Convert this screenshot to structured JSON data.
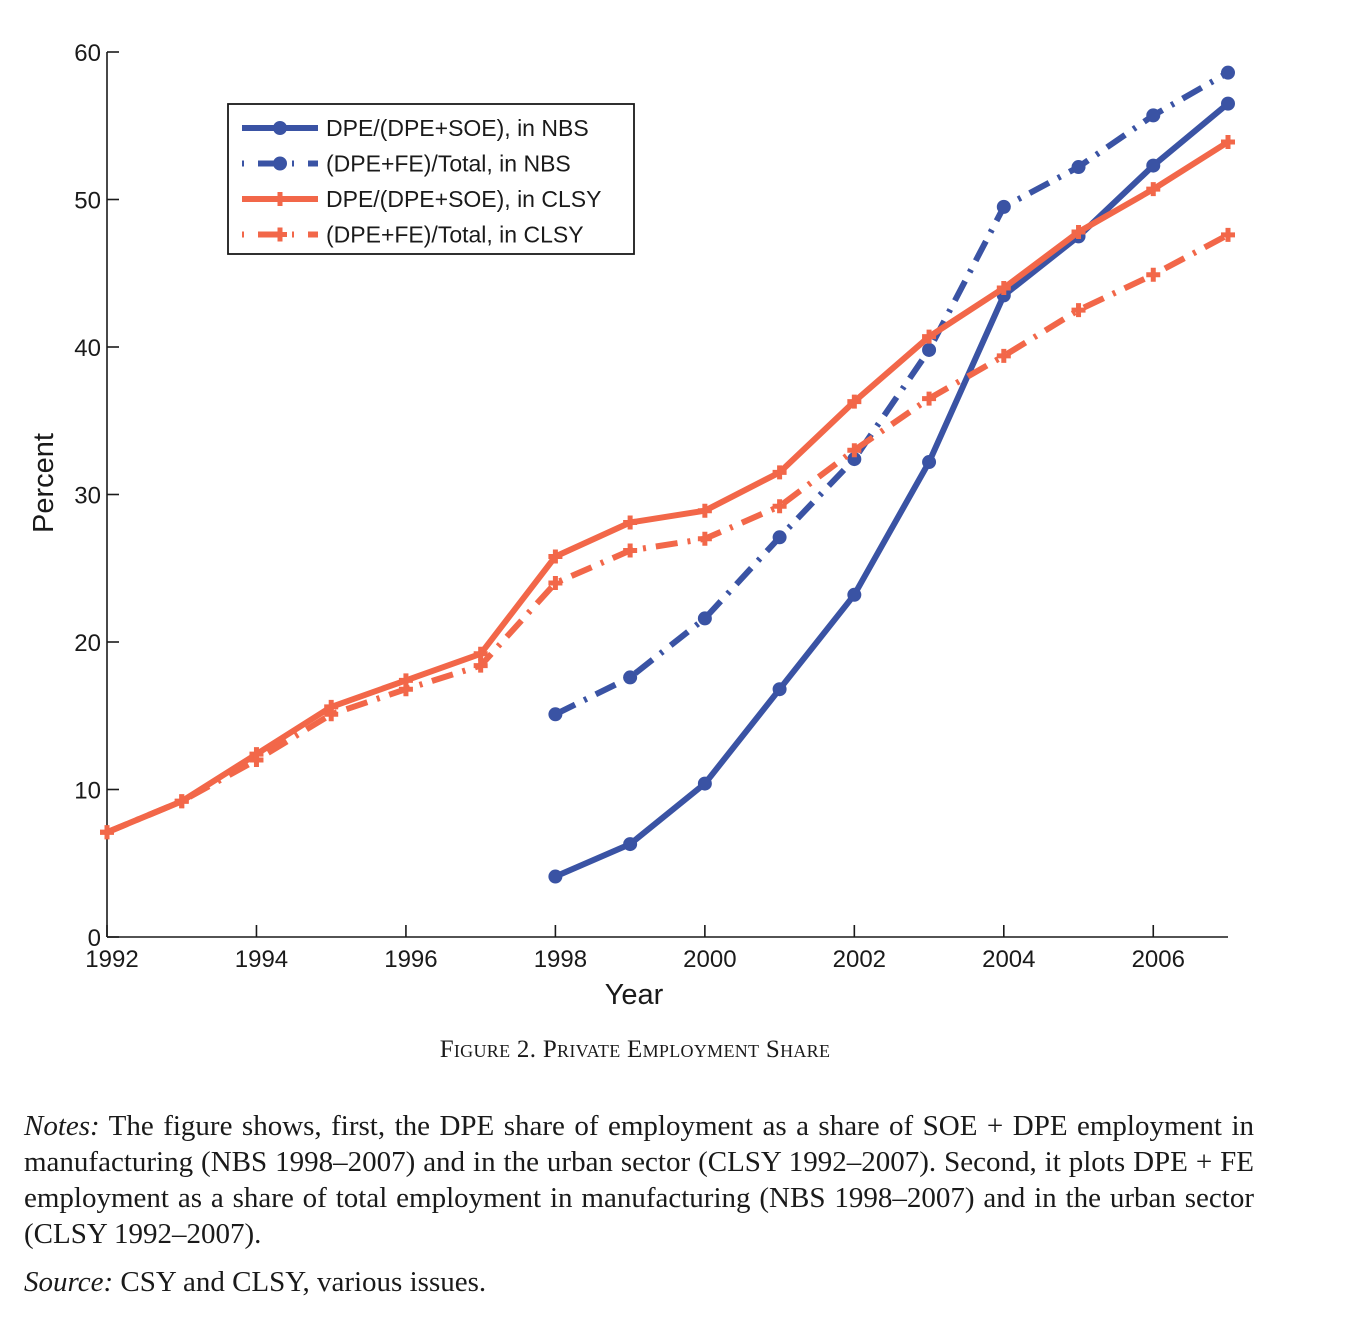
{
  "chart_data": {
    "type": "line",
    "title": "",
    "xlabel": "Year",
    "ylabel": "Percent",
    "xlim": [
      1992,
      2007
    ],
    "ylim": [
      0,
      60
    ],
    "x_ticks": [
      1992,
      1994,
      1996,
      1998,
      2000,
      2002,
      2004,
      2006
    ],
    "y_ticks": [
      0,
      10,
      20,
      30,
      40,
      50,
      60
    ],
    "grid": false,
    "legend_position": "top-left",
    "series": [
      {
        "name": "DPE/(DPE+SOE), in NBS",
        "color": "#3a53a4",
        "style": "solid",
        "marker": "circle",
        "x": [
          1998,
          1999,
          2000,
          2001,
          2002,
          2003,
          2004,
          2005,
          2006,
          2007
        ],
        "values": [
          4.1,
          6.3,
          10.4,
          16.8,
          23.2,
          32.2,
          43.5,
          47.5,
          52.3,
          56.5
        ]
      },
      {
        "name": "(DPE+FE)/Total, in NBS",
        "color": "#3a53a4",
        "style": "dashdot",
        "marker": "circle",
        "x": [
          1998,
          1999,
          2000,
          2001,
          2002,
          2003,
          2004,
          2005,
          2006,
          2007
        ],
        "values": [
          15.1,
          17.6,
          21.6,
          27.1,
          32.4,
          39.8,
          49.5,
          52.2,
          55.7,
          58.6
        ]
      },
      {
        "name": "DPE/(DPE+SOE), in CLSY",
        "color": "#f26749",
        "style": "solid",
        "marker": "plus",
        "x": [
          1992,
          1993,
          1994,
          1995,
          1996,
          1997,
          1998,
          1999,
          2000,
          2001,
          2002,
          2003,
          2004,
          2005,
          2006,
          2007
        ],
        "values": [
          7.1,
          9.2,
          12.4,
          15.6,
          17.4,
          19.2,
          25.8,
          28.1,
          28.9,
          31.5,
          36.3,
          40.7,
          44.0,
          47.8,
          50.7,
          53.9
        ]
      },
      {
        "name": "(DPE+FE)/Total, in CLSY",
        "color": "#f26749",
        "style": "dashdot",
        "marker": "plus",
        "x": [
          1992,
          1993,
          1994,
          1995,
          1996,
          1997,
          1998,
          1999,
          2000,
          2001,
          2002,
          2003,
          2004,
          2005,
          2006,
          2007
        ],
        "values": [
          7.1,
          9.2,
          12.0,
          15.1,
          16.8,
          18.4,
          24.0,
          26.2,
          27.0,
          29.2,
          33.0,
          36.5,
          39.4,
          42.5,
          44.9,
          47.6
        ]
      }
    ]
  },
  "caption": "Figure 2. Private Employment Share",
  "notes": {
    "label": "Notes:",
    "text": " The figure shows, first, the DPE share of employment as a share of SOE + DPE employment in manufacturing (NBS 1998–2007) and in the urban sector (CLSY 1992–2007). Second, it plots DPE + FE employment as a share of total employment in manufacturing (NBS 1998–2007) and in the urban sector (CLSY 1992–2007)."
  },
  "source": {
    "label": "Source:",
    "text": " CSY and CLSY, various issues."
  }
}
